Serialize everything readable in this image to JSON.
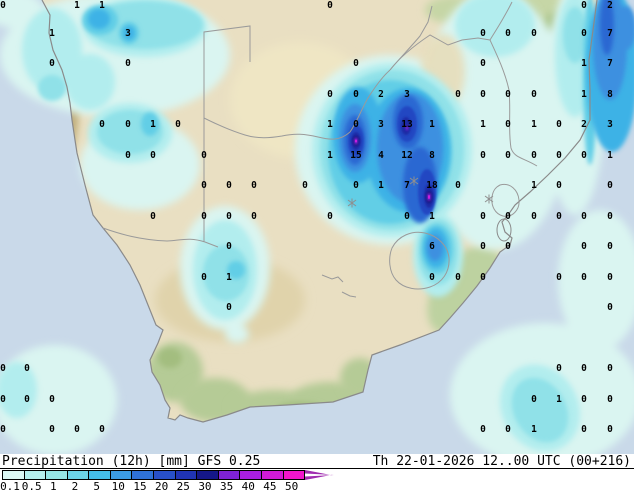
{
  "legend": {
    "title": "Precipitation (12h) [mm] GFS 0.25",
    "datetime": "Th 22-01-2026 12..00 UTC (00+216)",
    "colorbar": {
      "ticks": [
        "0.1",
        "0.5",
        "1",
        "2",
        "5",
        "10",
        "15",
        "20",
        "25",
        "30",
        "35",
        "40",
        "45",
        "50"
      ],
      "segment_colors": [
        "#dcf8f4",
        "#b6f0ee",
        "#96e6e6",
        "#6cd4e8",
        "#44bce8",
        "#3c9ce4",
        "#2f72d8",
        "#2850c8",
        "#2034b4",
        "#151788",
        "#7e22d4",
        "#a81ee0",
        "#d21ad8",
        "#f215cc"
      ],
      "arrow_color": "#a02cb0"
    }
  },
  "map": {
    "region": "Southern Africa",
    "colors": {
      "ocean": "#c9d9e9",
      "land": "#e9dfc2",
      "coastline": "#8a8a8a",
      "border": "#9a9a9a",
      "value_text": "#000000"
    },
    "precip_levels_mm": [
      0.1,
      0.5,
      1,
      2,
      5,
      10,
      15,
      20,
      25,
      30,
      35,
      40,
      45,
      50
    ],
    "grid_values": [
      [
        3,
        4,
        "0"
      ],
      [
        77,
        4,
        "1"
      ],
      [
        102,
        4,
        "1"
      ],
      [
        330,
        4,
        "0"
      ],
      [
        584,
        4,
        "0"
      ],
      [
        610,
        4,
        "2"
      ],
      [
        52,
        32,
        "1"
      ],
      [
        128,
        32,
        "3"
      ],
      [
        483,
        32,
        "0"
      ],
      [
        508,
        32,
        "0"
      ],
      [
        534,
        32,
        "0"
      ],
      [
        584,
        32,
        "0"
      ],
      [
        610,
        32,
        "7"
      ],
      [
        52,
        62,
        "0"
      ],
      [
        128,
        62,
        "0"
      ],
      [
        356,
        62,
        "0"
      ],
      [
        483,
        62,
        "0"
      ],
      [
        584,
        62,
        "1"
      ],
      [
        610,
        62,
        "7"
      ],
      [
        330,
        93,
        "0"
      ],
      [
        356,
        93,
        "0"
      ],
      [
        381,
        93,
        "2"
      ],
      [
        407,
        93,
        "3"
      ],
      [
        458,
        93,
        "0"
      ],
      [
        483,
        93,
        "0"
      ],
      [
        508,
        93,
        "0"
      ],
      [
        534,
        93,
        "0"
      ],
      [
        584,
        93,
        "1"
      ],
      [
        610,
        93,
        "8"
      ],
      [
        102,
        123,
        "0"
      ],
      [
        128,
        123,
        "0"
      ],
      [
        153,
        123,
        "1"
      ],
      [
        178,
        123,
        "0"
      ],
      [
        330,
        123,
        "1"
      ],
      [
        356,
        123,
        "0"
      ],
      [
        381,
        123,
        "3"
      ],
      [
        407,
        123,
        "13"
      ],
      [
        432,
        123,
        "1"
      ],
      [
        483,
        123,
        "1"
      ],
      [
        508,
        123,
        "0"
      ],
      [
        534,
        123,
        "1"
      ],
      [
        559,
        123,
        "0"
      ],
      [
        584,
        123,
        "2"
      ],
      [
        610,
        123,
        "3"
      ],
      [
        128,
        154,
        "0"
      ],
      [
        153,
        154,
        "0"
      ],
      [
        204,
        154,
        "0"
      ],
      [
        330,
        154,
        "1"
      ],
      [
        356,
        154,
        "15"
      ],
      [
        381,
        154,
        "4"
      ],
      [
        407,
        154,
        "12"
      ],
      [
        432,
        154,
        "8"
      ],
      [
        483,
        154,
        "0"
      ],
      [
        508,
        154,
        "0"
      ],
      [
        534,
        154,
        "0"
      ],
      [
        559,
        154,
        "0"
      ],
      [
        584,
        154,
        "0"
      ],
      [
        610,
        154,
        "1"
      ],
      [
        204,
        184,
        "0"
      ],
      [
        229,
        184,
        "0"
      ],
      [
        254,
        184,
        "0"
      ],
      [
        305,
        184,
        "0"
      ],
      [
        356,
        184,
        "0"
      ],
      [
        381,
        184,
        "1"
      ],
      [
        407,
        184,
        "7"
      ],
      [
        432,
        184,
        "18"
      ],
      [
        458,
        184,
        "0"
      ],
      [
        534,
        184,
        "1"
      ],
      [
        559,
        184,
        "0"
      ],
      [
        610,
        184,
        "0"
      ],
      [
        153,
        215,
        "0"
      ],
      [
        204,
        215,
        "0"
      ],
      [
        229,
        215,
        "0"
      ],
      [
        254,
        215,
        "0"
      ],
      [
        330,
        215,
        "0"
      ],
      [
        407,
        215,
        "0"
      ],
      [
        432,
        215,
        "1"
      ],
      [
        483,
        215,
        "0"
      ],
      [
        508,
        215,
        "0"
      ],
      [
        534,
        215,
        "0"
      ],
      [
        559,
        215,
        "0"
      ],
      [
        584,
        215,
        "0"
      ],
      [
        610,
        215,
        "0"
      ],
      [
        229,
        245,
        "0"
      ],
      [
        432,
        245,
        "6"
      ],
      [
        483,
        245,
        "0"
      ],
      [
        508,
        245,
        "0"
      ],
      [
        584,
        245,
        "0"
      ],
      [
        610,
        245,
        "0"
      ],
      [
        204,
        276,
        "0"
      ],
      [
        229,
        276,
        "1"
      ],
      [
        432,
        276,
        "0"
      ],
      [
        458,
        276,
        "0"
      ],
      [
        483,
        276,
        "0"
      ],
      [
        559,
        276,
        "0"
      ],
      [
        584,
        276,
        "0"
      ],
      [
        610,
        276,
        "0"
      ],
      [
        229,
        306,
        "0"
      ],
      [
        610,
        306,
        "0"
      ],
      [
        3,
        367,
        "0"
      ],
      [
        27,
        367,
        "0"
      ],
      [
        559,
        367,
        "0"
      ],
      [
        584,
        367,
        "0"
      ],
      [
        610,
        367,
        "0"
      ],
      [
        3,
        398,
        "0"
      ],
      [
        27,
        398,
        "0"
      ],
      [
        52,
        398,
        "0"
      ],
      [
        534,
        398,
        "0"
      ],
      [
        559,
        398,
        "1"
      ],
      [
        584,
        398,
        "0"
      ],
      [
        610,
        398,
        "0"
      ],
      [
        3,
        428,
        "0"
      ],
      [
        52,
        428,
        "0"
      ],
      [
        77,
        428,
        "0"
      ],
      [
        102,
        428,
        "0"
      ],
      [
        483,
        428,
        "0"
      ],
      [
        508,
        428,
        "0"
      ],
      [
        534,
        428,
        "1"
      ],
      [
        584,
        428,
        "0"
      ],
      [
        610,
        428,
        "0"
      ]
    ],
    "city_markers": [
      [
        352,
        203
      ],
      [
        414,
        181
      ],
      [
        489,
        199
      ]
    ]
  }
}
